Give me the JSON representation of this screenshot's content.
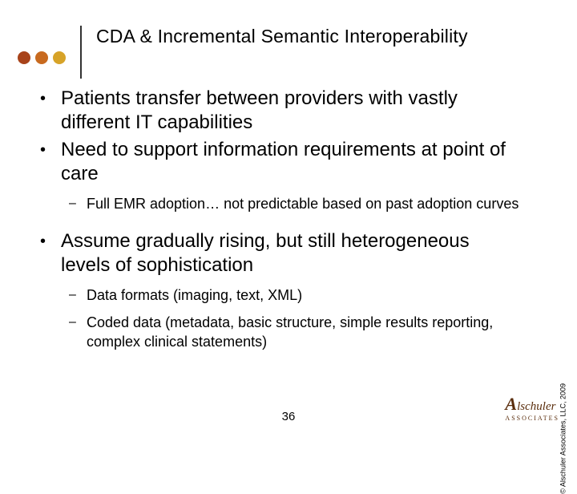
{
  "slide": {
    "title": "CDA & Incremental Semantic Interoperability",
    "page_number": "36",
    "copyright": "© Alschuler Associates, LLC, 2009",
    "logo_name": "Alschuler",
    "logo_sub": "ASSOCIATES"
  },
  "dots": {
    "colors": [
      "#a8431a",
      "#c86a1f",
      "#d7a328"
    ]
  },
  "bullets": [
    {
      "level": 1,
      "text": "Patients transfer between providers with vastly different IT capabilities"
    },
    {
      "level": 1,
      "text": "Need to support information requirements at point of care"
    },
    {
      "level": 2,
      "text": "Full EMR adoption… not predictable based on past adoption curves"
    },
    {
      "level": 1,
      "text": "Assume gradually rising, but still heterogeneous levels of sophistication"
    },
    {
      "level": 2,
      "text": "Data formats (imaging, text, XML)"
    },
    {
      "level": 2,
      "text": "Coded data (metadata, basic structure, simple results reporting, complex clinical statements)"
    }
  ]
}
